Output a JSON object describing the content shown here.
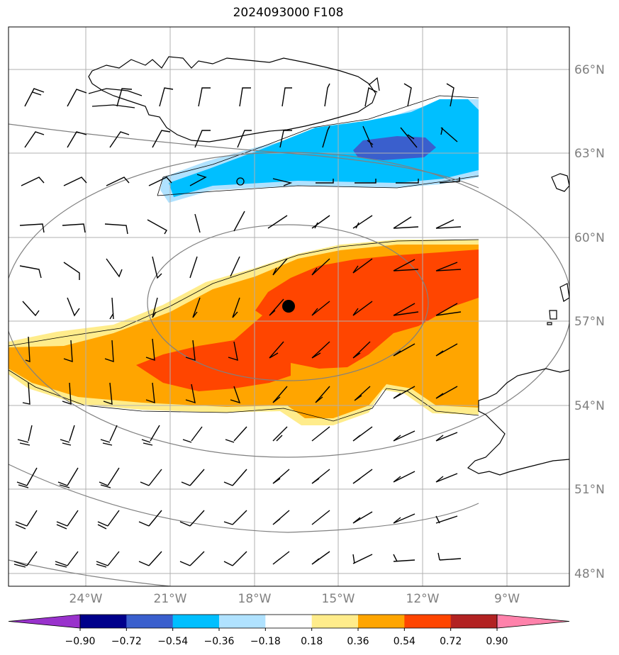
{
  "title": "2024093000 F108",
  "lat_labels": [
    "66°N",
    "63°N",
    "60°N",
    "57°N",
    "54°N",
    "51°N",
    "48°N"
  ],
  "lon_labels": [
    "24°W",
    "21°W",
    "18°W",
    "15°W",
    "12°W",
    "9°W"
  ],
  "colorbar": {
    "labels": [
      "−0.90",
      "−0.72",
      "−0.54",
      "−0.36",
      "−0.18",
      "0.18",
      "0.36",
      "0.54",
      "0.72",
      "0.90"
    ],
    "colors": [
      "#9932cc",
      "#00008b",
      "#3a5fcd",
      "#00bfff",
      "#b0e2ff",
      "#ffffff",
      "#ffec8b",
      "#ffa500",
      "#ff4500",
      "#b22222",
      "#ff82ab"
    ]
  },
  "colors": {
    "neg_strong": "#3a5fcd",
    "neg_mid": "#00bfff",
    "neg_weak": "#b0e2ff",
    "pos_weak": "#ffec8b",
    "pos_mid": "#ffa500",
    "pos_strong": "#ff4500",
    "grid": "#b0b0b0",
    "ellipse": "#808080"
  },
  "markers": [
    {
      "name": "storm-center",
      "shape": "filled-circle"
    },
    {
      "name": "open-circle",
      "shape": "hollow-circle"
    }
  ]
}
